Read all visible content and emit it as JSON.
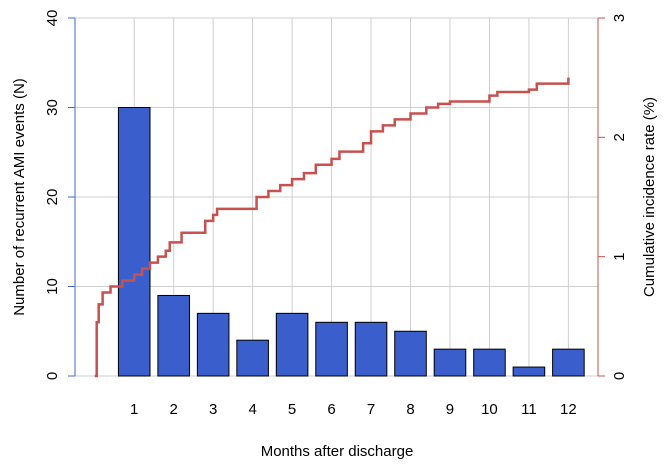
{
  "chart_data": {
    "type": "bar",
    "xlabel": "Months after discharge",
    "ylabel": "Number of recurrent AMI events (N)",
    "y2label": "Cumulative incidence rate (%)",
    "xlim": [
      -0.5,
      12.75
    ],
    "xticks": [
      1,
      2,
      3,
      4,
      5,
      6,
      7,
      8,
      9,
      10,
      11,
      12
    ],
    "ylim": [
      0,
      40
    ],
    "yticks": [
      0,
      10,
      20,
      30,
      40
    ],
    "y2lim": [
      0,
      3
    ],
    "y2ticks": [
      0,
      1,
      2,
      3
    ],
    "grid": true,
    "left_axis_color": "#4169c8",
    "right_axis_color": "#c8504f",
    "series": [
      {
        "type": "bar",
        "color": "#3a5fcd",
        "x": [
          1,
          2,
          3,
          4,
          5,
          6,
          7,
          8,
          9,
          10,
          11,
          12
        ],
        "values": [
          30,
          9,
          7,
          4,
          7,
          6,
          6,
          5,
          3,
          3,
          1,
          3
        ]
      },
      {
        "type": "step",
        "axis": "y2",
        "color": "#c8504f",
        "x": [
          0,
          0.05,
          0.1,
          0.2,
          0.4,
          0.7,
          1.0,
          1.2,
          1.4,
          1.6,
          1.8,
          1.9,
          2.2,
          2.8,
          3.0,
          3.1,
          4.1,
          4.4,
          4.7,
          5.0,
          5.3,
          5.6,
          6.0,
          6.2,
          6.8,
          7.0,
          7.3,
          7.6,
          8.0,
          8.4,
          8.7,
          9.0,
          10.0,
          10.2,
          11.0,
          11.2,
          12.0
        ],
        "values": [
          0,
          0.45,
          0.6,
          0.7,
          0.75,
          0.8,
          0.85,
          0.9,
          0.95,
          1.0,
          1.05,
          1.12,
          1.2,
          1.3,
          1.35,
          1.4,
          1.5,
          1.55,
          1.6,
          1.65,
          1.7,
          1.77,
          1.82,
          1.88,
          1.95,
          2.05,
          2.1,
          2.15,
          2.2,
          2.25,
          2.28,
          2.3,
          2.35,
          2.38,
          2.4,
          2.45,
          2.5
        ]
      }
    ]
  }
}
